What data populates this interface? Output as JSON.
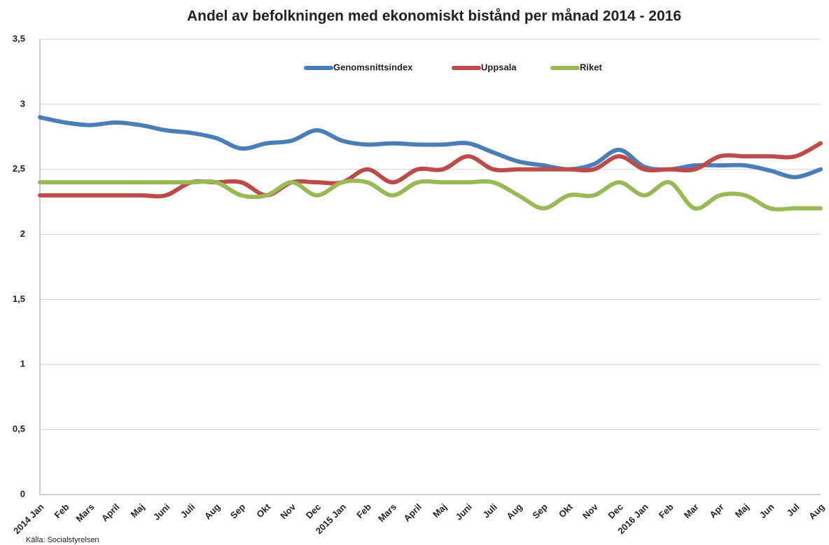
{
  "chart_data": {
    "type": "line",
    "title": "Andel av befolkningen med ekonomiskt bistånd per månad 2014 - 2016",
    "source": "Källa: Socialstyrelsen",
    "categories": [
      "2014 Jan",
      "Feb",
      "Mars",
      "April",
      "Maj",
      "Juni",
      "Juli",
      "Aug",
      "Sep",
      "Okt",
      "Nov",
      "Dec",
      "2015 Jan",
      "Feb",
      "Mars",
      "April",
      "Maj",
      "Juni",
      "Juli",
      "Aug",
      "Sep",
      "Okt",
      "Nov",
      "Dec",
      "2016 Jan",
      "Feb",
      "Mar",
      "Apr",
      "Maj",
      "Jun",
      "Jul",
      "Aug"
    ],
    "series": [
      {
        "name": "Genomsnittsindex",
        "color": "#4a7ebb",
        "values": [
          2.9,
          2.86,
          2.84,
          2.86,
          2.84,
          2.8,
          2.78,
          2.74,
          2.66,
          2.7,
          2.72,
          2.8,
          2.72,
          2.69,
          2.7,
          2.69,
          2.69,
          2.7,
          2.63,
          2.56,
          2.53,
          2.5,
          2.54,
          2.65,
          2.52,
          2.5,
          2.53,
          2.53,
          2.53,
          2.49,
          2.44,
          2.5
        ]
      },
      {
        "name": "Uppsala",
        "color": "#be4b48",
        "values": [
          2.3,
          2.3,
          2.3,
          2.3,
          2.3,
          2.3,
          2.4,
          2.4,
          2.4,
          2.3,
          2.4,
          2.4,
          2.4,
          2.5,
          2.4,
          2.5,
          2.5,
          2.6,
          2.5,
          2.5,
          2.5,
          2.5,
          2.5,
          2.6,
          2.5,
          2.5,
          2.5,
          2.6,
          2.6,
          2.6,
          2.6,
          2.7
        ]
      },
      {
        "name": "Riket",
        "color": "#98b954",
        "values": [
          2.4,
          2.4,
          2.4,
          2.4,
          2.4,
          2.4,
          2.4,
          2.4,
          2.3,
          2.3,
          2.4,
          2.3,
          2.4,
          2.4,
          2.3,
          2.4,
          2.4,
          2.4,
          2.4,
          2.3,
          2.2,
          2.3,
          2.3,
          2.4,
          2.3,
          2.4,
          2.2,
          2.3,
          2.3,
          2.2,
          2.2,
          2.2
        ]
      }
    ],
    "ylim": [
      0,
      3.5
    ],
    "yticks": [
      0,
      {
        "value": 0.5,
        "label": "0,5"
      },
      1,
      {
        "value": 1.5,
        "label": "1,5"
      },
      2,
      {
        "value": 2.5,
        "label": "2,5"
      },
      3,
      {
        "value": 3.5,
        "label": "3,5"
      }
    ],
    "grid": true,
    "legend": "top"
  }
}
